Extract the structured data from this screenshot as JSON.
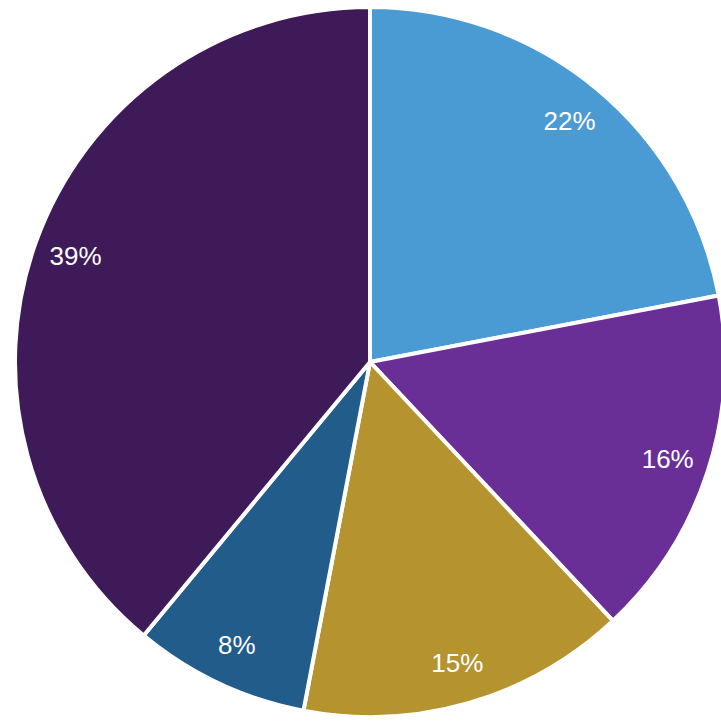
{
  "chart_data": {
    "type": "pie",
    "values": [
      22,
      16,
      15,
      8,
      39
    ],
    "value_labels": [
      "22%",
      "16%",
      "15%",
      "8%",
      "39%"
    ],
    "colors": [
      "#4a9ad4",
      "#6a2f96",
      "#b5932e",
      "#215c8a",
      "#3f1a58"
    ],
    "data_labels": true
  }
}
